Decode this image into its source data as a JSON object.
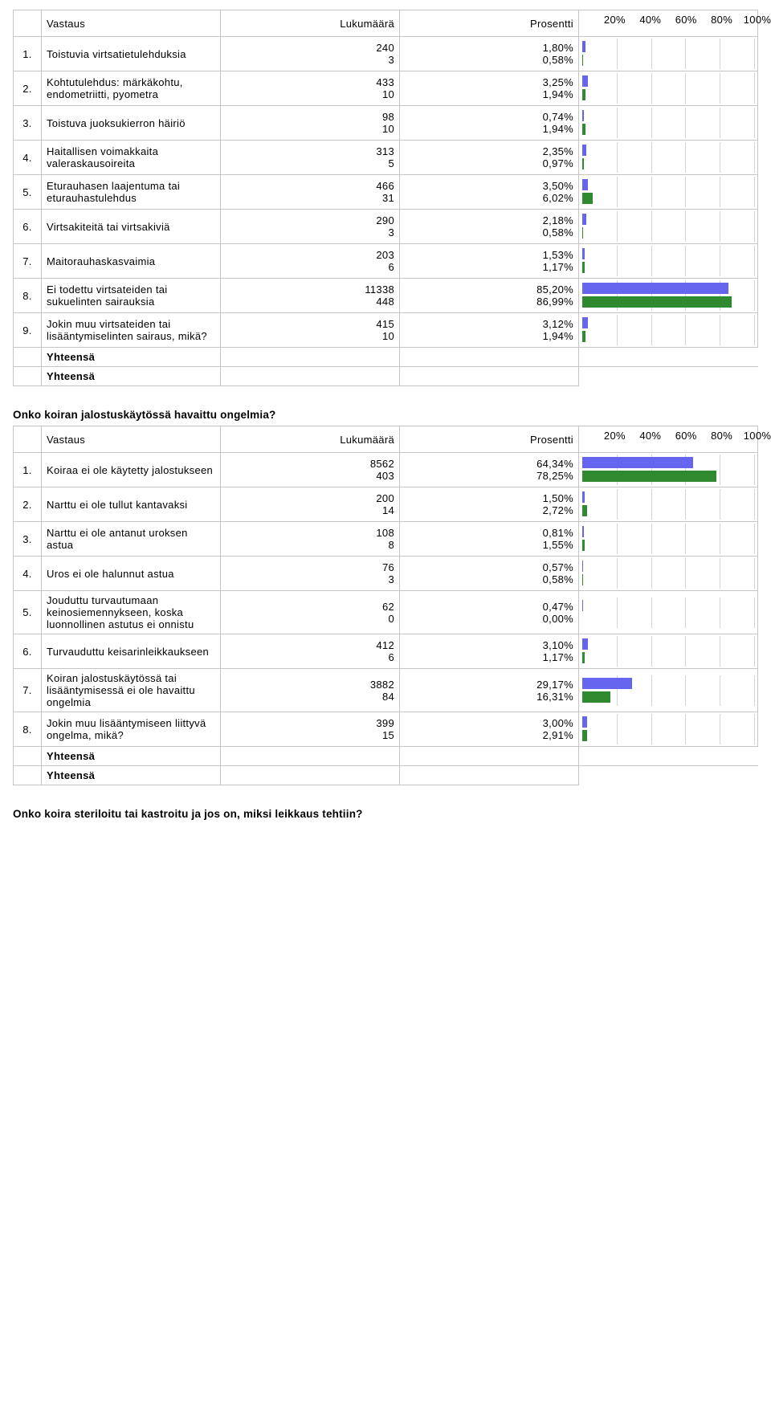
{
  "colors": {
    "blue": "#6565ef",
    "green": "#2f8a2f",
    "grid": "#d4d4d4",
    "border": "#c5c5c5"
  },
  "scale": {
    "ticks": [
      20,
      40,
      60,
      80,
      100
    ],
    "labels": [
      "20%",
      "40%",
      "60%",
      "80%",
      "100%"
    ]
  },
  "headers": {
    "vastaus": "Vastaus",
    "lukumaara": "Lukumäärä",
    "prosentti": "Prosentti"
  },
  "yhteensa": "Yhteensä",
  "t1": {
    "rows": [
      {
        "idx": "1.",
        "label": "Toistuvia virtsatietulehduksia",
        "c1": "240",
        "c2": "3",
        "p1": "1,80%",
        "p2": "0,58%",
        "v1": 1.8,
        "v2": 0.58
      },
      {
        "idx": "2.",
        "label": "Kohtutulehdus: märkäkohtu, endometriitti, pyometra",
        "c1": "433",
        "c2": "10",
        "p1": "3,25%",
        "p2": "1,94%",
        "v1": 3.25,
        "v2": 1.94
      },
      {
        "idx": "3.",
        "label": "Toistuva juoksukierron häiriö",
        "c1": "98",
        "c2": "10",
        "p1": "0,74%",
        "p2": "1,94%",
        "v1": 0.74,
        "v2": 1.94
      },
      {
        "idx": "4.",
        "label": "Haitallisen voimakkaita valeraskausoireita",
        "c1": "313",
        "c2": "5",
        "p1": "2,35%",
        "p2": "0,97%",
        "v1": 2.35,
        "v2": 0.97
      },
      {
        "idx": "5.",
        "label": "Eturauhasen laajentuma tai eturauhastulehdus",
        "c1": "466",
        "c2": "31",
        "p1": "3,50%",
        "p2": "6,02%",
        "v1": 3.5,
        "v2": 6.02
      },
      {
        "idx": "6.",
        "label": "Virtsakiteitä tai virtsakiviä",
        "c1": "290",
        "c2": "3",
        "p1": "2,18%",
        "p2": "0,58%",
        "v1": 2.18,
        "v2": 0.58
      },
      {
        "idx": "7.",
        "label": "Maitorauhaskasvaimia",
        "c1": "203",
        "c2": "6",
        "p1": "1,53%",
        "p2": "1,17%",
        "v1": 1.53,
        "v2": 1.17
      },
      {
        "idx": "8.",
        "label": "Ei todettu virtsateiden tai sukuelinten sairauksia",
        "c1": "11338",
        "c2": "448",
        "p1": "85,20%",
        "p2": "86,99%",
        "v1": 85.2,
        "v2": 86.99
      },
      {
        "idx": "9.",
        "label": "Jokin muu virtsateiden tai lisääntymiselinten sairaus, mikä?",
        "c1": "415",
        "c2": "10",
        "p1": "3,12%",
        "p2": "1,94%",
        "v1": 3.12,
        "v2": 1.94
      }
    ]
  },
  "t2": {
    "title": "Onko koiran jalostuskäytössä havaittu ongelmia?",
    "rows": [
      {
        "idx": "1.",
        "label": "Koiraa ei ole käytetty jalostukseen",
        "c1": "8562",
        "c2": "403",
        "p1": "64,34%",
        "p2": "78,25%",
        "v1": 64.34,
        "v2": 78.25
      },
      {
        "idx": "2.",
        "label": "Narttu ei ole tullut kantavaksi",
        "c1": "200",
        "c2": "14",
        "p1": "1,50%",
        "p2": "2,72%",
        "v1": 1.5,
        "v2": 2.72
      },
      {
        "idx": "3.",
        "label": "Narttu ei ole antanut uroksen astua",
        "c1": "108",
        "c2": "8",
        "p1": "0,81%",
        "p2": "1,55%",
        "v1": 0.81,
        "v2": 1.55
      },
      {
        "idx": "4.",
        "label": "Uros ei ole halunnut astua",
        "c1": "76",
        "c2": "3",
        "p1": "0,57%",
        "p2": "0,58%",
        "v1": 0.57,
        "v2": 0.58
      },
      {
        "idx": "5.",
        "label": "Jouduttu turvautumaan keinosiemennykseen, koska luonnollinen astutus ei onnistu",
        "c1": "62",
        "c2": "0",
        "p1": "0,47%",
        "p2": "0,00%",
        "v1": 0.47,
        "v2": 0.0
      },
      {
        "idx": "6.",
        "label": "Turvauduttu keisarinleikkaukseen",
        "c1": "412",
        "c2": "6",
        "p1": "3,10%",
        "p2": "1,17%",
        "v1": 3.1,
        "v2": 1.17
      },
      {
        "idx": "7.",
        "label": "Koiran jalostuskäytössä tai lisääntymisessä ei ole havaittu ongelmia",
        "c1": "3882",
        "c2": "84",
        "p1": "29,17%",
        "p2": "16,31%",
        "v1": 29.17,
        "v2": 16.31
      },
      {
        "idx": "8.",
        "label": "Jokin muu lisääntymiseen liittyvä ongelma, mikä?",
        "c1": "399",
        "c2": "15",
        "p1": "3,00%",
        "p2": "2,91%",
        "v1": 3.0,
        "v2": 2.91
      }
    ]
  },
  "footer_q": "Onko koira steriloitu tai kastroitu ja jos on, miksi leikkaus tehtiin?"
}
